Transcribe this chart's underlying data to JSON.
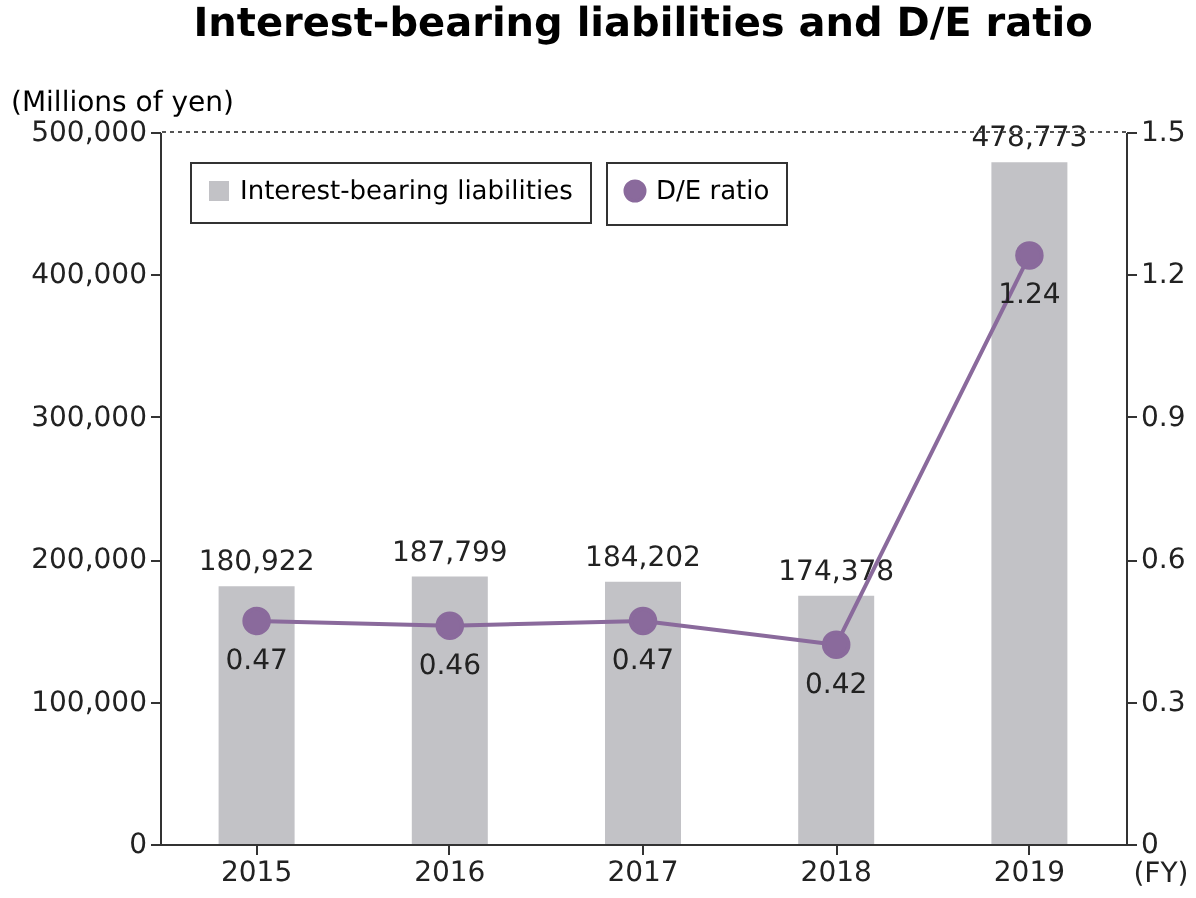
{
  "chart_data": {
    "type": "bar",
    "title": "Interest-bearing liabilities and D/E ratio",
    "ylabel": "(Millions of yen)",
    "annotations": [
      "(FY)"
    ],
    "categories": [
      "2015",
      "2016",
      "2017",
      "2018",
      "2019"
    ],
    "series": [
      {
        "name": "Interest-bearing liabilities",
        "color": "#c2c2c6",
        "values": [
          180922,
          187799,
          184202,
          174378,
          478773
        ],
        "value_labels": [
          "180,922",
          "187,799",
          "184,202",
          "174,378",
          "478,773"
        ]
      },
      {
        "name": "D/E ratio",
        "type": "line",
        "axis": "y2",
        "color": "#8a6a9c",
        "marker": "circle",
        "values": [
          0.47,
          0.46,
          0.47,
          0.42,
          1.24
        ],
        "value_labels": [
          "0.47",
          "0.46",
          "0.47",
          "0.42",
          "1.24"
        ]
      }
    ],
    "ylim": [
      0,
      500000
    ],
    "yticks": [
      {
        "value": 0,
        "label": "0"
      },
      {
        "value": 100000,
        "label": "100,000"
      },
      {
        "value": 200000,
        "label": "200,000"
      },
      {
        "value": 300000,
        "label": "300,000"
      },
      {
        "value": 400000,
        "label": "400,000"
      },
      {
        "value": 500000,
        "label": "500,000"
      }
    ],
    "y2lim": [
      0,
      1.5
    ],
    "y2ticks": [
      0,
      0.3,
      0.6,
      0.9,
      1.2,
      1.5
    ],
    "legend": "top left",
    "grid": false
  }
}
